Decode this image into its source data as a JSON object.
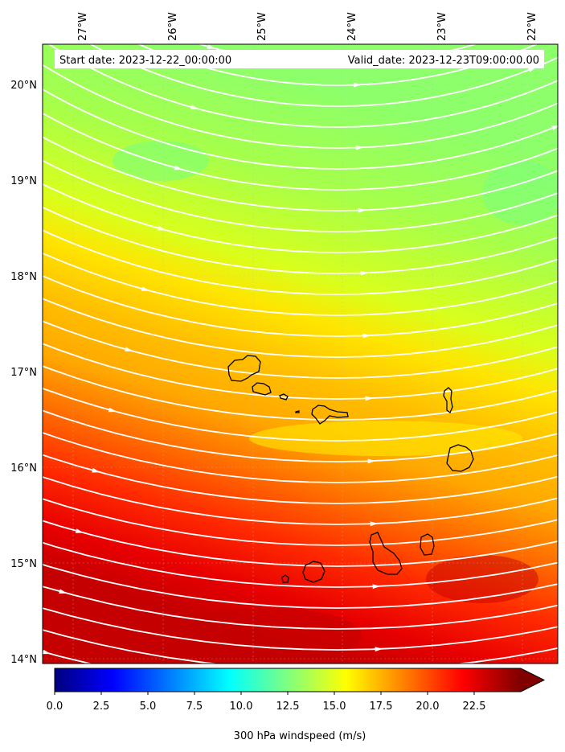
{
  "map": {
    "header": {
      "start_date": "Start date: 2023-12-22_00:00:00",
      "valid_date": "Valid_date: 2023-12-23T09:00:00.00"
    },
    "lon_labels": [
      "27°W",
      "26°W",
      "25°W",
      "24°W",
      "23°W",
      "22°W"
    ],
    "lat_labels": [
      "20°N",
      "19°N",
      "18°N",
      "17°N",
      "16°N",
      "15°N",
      "14°N"
    ],
    "colorbar": {
      "tick_labels": [
        "0.0",
        "2.5",
        "5.0",
        "7.5",
        "10.0",
        "12.5",
        "15.0",
        "17.5",
        "20.0",
        "22.5"
      ],
      "label": "300 hPa windspeed (m/s)",
      "range": [
        0,
        25
      ],
      "extend": "max"
    },
    "colors": {
      "streamline": "#ffffff",
      "coastline": "#000000",
      "gridline": "#bbbbbb"
    },
    "islands": [
      "Santo Antão",
      "São Vicente",
      "Santa Luzia",
      "São Nicolau",
      "Sal",
      "Boa Vista",
      "Fogo",
      "Santiago",
      "Maio",
      "Brava"
    ]
  }
}
